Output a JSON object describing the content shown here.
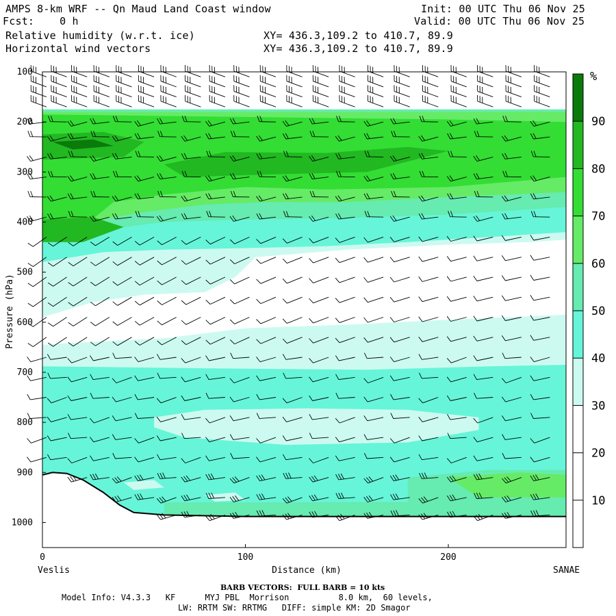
{
  "header": {
    "title": "AMPS 8-km WRF -- Qn Maud Land Coast window",
    "fcst": "Fcst:    0 h",
    "init": "Init: 00 UTC Thu 06 Nov 25",
    "valid": "Valid: 00 UTC Thu 06 Nov 25",
    "field1": "Relative humidity (w.r.t. ice)",
    "field2": "Horizontal wind vectors",
    "xy1": "XY= 436.3,109.2 to 410.7, 89.9",
    "xy2": "XY= 436.3,109.2 to 410.7, 89.9"
  },
  "footer": {
    "barb_note": "BARB VECTORS:  FULL BARB = 10 kts",
    "model_line1": "Model Info: V4.3.3   KF      MYJ PBL  Morrison          8.0 km,  60 levels,",
    "model_line2": "LW: RRTM SW: RRTMG   DIFF: simple KM: 2D Smagor"
  },
  "chart_data": {
    "type": "heatmap",
    "title": "Relative humidity (w.r.t. ice)",
    "overlay": "Horizontal wind vectors (barbs)",
    "xlabel": "Distance (km)",
    "ylabel": "Pressure (hPa)",
    "xlim": [
      0,
      258
    ],
    "ylim": [
      100,
      1050
    ],
    "y_inverted": true,
    "x_ticks": [
      0,
      100,
      200
    ],
    "y_ticks": [
      100,
      200,
      300,
      400,
      500,
      600,
      700,
      800,
      900,
      1000
    ],
    "x_start_label": "Veslis",
    "x_end_label": "SANAE",
    "colorbar": {
      "unit": "%",
      "levels": [
        10,
        20,
        30,
        40,
        50,
        60,
        70,
        80,
        90
      ],
      "colors": [
        "#ffffff",
        "#ffffff",
        "#ffffff",
        "#ccfaf0",
        "#66f5d8",
        "#66ebb0",
        "#66eb66",
        "#33dd33",
        "#22b822",
        "#0a7a0a"
      ]
    },
    "terrain_surface": [
      {
        "x": 0,
        "p": 905
      },
      {
        "x": 5,
        "p": 900
      },
      {
        "x": 12,
        "p": 902
      },
      {
        "x": 20,
        "p": 915
      },
      {
        "x": 30,
        "p": 940
      },
      {
        "x": 38,
        "p": 965
      },
      {
        "x": 45,
        "p": 980
      },
      {
        "x": 60,
        "p": 985
      },
      {
        "x": 100,
        "p": 988
      },
      {
        "x": 200,
        "p": 988
      },
      {
        "x": 258,
        "p": 988
      }
    ],
    "rh_regions": [
      {
        "rh": 35,
        "outline": [
          [
            0,
            175
          ],
          [
            258,
            175
          ],
          [
            258,
            1000
          ],
          [
            0,
            1000
          ]
        ]
      },
      {
        "rh": 0,
        "outline": [
          [
            0,
            590
          ],
          [
            25,
            560
          ],
          [
            50,
            545
          ],
          [
            80,
            540
          ],
          [
            95,
            510
          ],
          [
            105,
            470
          ],
          [
            150,
            455
          ],
          [
            200,
            445
          ],
          [
            240,
            440
          ],
          [
            258,
            435
          ],
          [
            258,
            585
          ],
          [
            200,
            595
          ],
          [
            150,
            605
          ],
          [
            100,
            612
          ],
          [
            60,
            632
          ],
          [
            20,
            640
          ],
          [
            0,
            645
          ]
        ]
      },
      {
        "rh": 45,
        "outline": [
          [
            0,
            175
          ],
          [
            258,
            175
          ],
          [
            258,
            420
          ],
          [
            220,
            430
          ],
          [
            180,
            440
          ],
          [
            140,
            448
          ],
          [
            100,
            452
          ],
          [
            60,
            455
          ],
          [
            30,
            460
          ],
          [
            0,
            480
          ]
        ]
      },
      {
        "rh": 45,
        "outline": [
          [
            0,
            688
          ],
          [
            80,
            692
          ],
          [
            160,
            695
          ],
          [
            220,
            688
          ],
          [
            258,
            685
          ],
          [
            258,
            990
          ],
          [
            0,
            990
          ]
        ]
      },
      {
        "rh": 35,
        "outline": [
          [
            55,
            790
          ],
          [
            80,
            775
          ],
          [
            130,
            772
          ],
          [
            180,
            775
          ],
          [
            215,
            790
          ],
          [
            215,
            815
          ],
          [
            180,
            840
          ],
          [
            120,
            845
          ],
          [
            70,
            830
          ],
          [
            55,
            810
          ]
        ]
      },
      {
        "rh": 55,
        "outline": [
          [
            0,
            175
          ],
          [
            258,
            175
          ],
          [
            258,
            370
          ],
          [
            200,
            385
          ],
          [
            150,
            392
          ],
          [
            100,
            395
          ],
          [
            60,
            400
          ],
          [
            30,
            415
          ],
          [
            0,
            420
          ]
        ]
      },
      {
        "rh": 65,
        "outline": [
          [
            0,
            180
          ],
          [
            258,
            180
          ],
          [
            258,
            340
          ],
          [
            200,
            350
          ],
          [
            150,
            360
          ],
          [
            110,
            360
          ],
          [
            80,
            365
          ],
          [
            50,
            380
          ],
          [
            30,
            395
          ],
          [
            0,
            410
          ]
        ]
      },
      {
        "rh": 75,
        "outline": [
          [
            0,
            185
          ],
          [
            200,
            195
          ],
          [
            258,
            200
          ],
          [
            258,
            310
          ],
          [
            200,
            330
          ],
          [
            140,
            335
          ],
          [
            100,
            330
          ],
          [
            60,
            345
          ],
          [
            35,
            360
          ],
          [
            20,
            410
          ],
          [
            0,
            420
          ]
        ]
      },
      {
        "rh": 85,
        "outline": [
          [
            0,
            225
          ],
          [
            30,
            220
          ],
          [
            50,
            240
          ],
          [
            40,
            270
          ],
          [
            0,
            275
          ]
        ]
      },
      {
        "rh": 85,
        "outline": [
          [
            60,
            285
          ],
          [
            90,
            260
          ],
          [
            140,
            262
          ],
          [
            180,
            250
          ],
          [
            200,
            258
          ],
          [
            160,
            300
          ],
          [
            110,
            305
          ],
          [
            70,
            310
          ]
        ]
      },
      {
        "rh": 85,
        "outline": [
          [
            0,
            395
          ],
          [
            25,
            390
          ],
          [
            40,
            410
          ],
          [
            20,
            440
          ],
          [
            0,
            440
          ]
        ]
      },
      {
        "rh": 95,
        "outline": [
          [
            5,
            240
          ],
          [
            25,
            235
          ],
          [
            35,
            248
          ],
          [
            15,
            255
          ]
        ]
      },
      {
        "rh": 55,
        "outline": [
          [
            180,
            910
          ],
          [
            220,
            895
          ],
          [
            258,
            895
          ],
          [
            258,
            985
          ],
          [
            180,
            985
          ]
        ]
      },
      {
        "rh": 65,
        "outline": [
          [
            200,
            910
          ],
          [
            235,
            900
          ],
          [
            258,
            905
          ],
          [
            258,
            950
          ],
          [
            215,
            950
          ]
        ]
      },
      {
        "rh": 55,
        "outline": [
          [
            60,
            960
          ],
          [
            258,
            958
          ],
          [
            258,
            990
          ],
          [
            60,
            990
          ]
        ]
      },
      {
        "rh": 35,
        "outline": [
          [
            40,
            920
          ],
          [
            55,
            915
          ],
          [
            60,
            930
          ],
          [
            45,
            935
          ]
        ]
      },
      {
        "rh": 35,
        "outline": [
          [
            80,
            945
          ],
          [
            95,
            940
          ],
          [
            100,
            955
          ],
          [
            85,
            958
          ]
        ]
      }
    ],
    "barb_columns_x_km": [
      2,
      12,
      22,
      33,
      44,
      55,
      66,
      78,
      90,
      102,
      115,
      128,
      141,
      154,
      168,
      181,
      195,
      209,
      222,
      236,
      250
    ],
    "barb_levels_hpa": [
      110,
      130,
      150,
      170,
      200,
      230,
      270,
      310,
      350,
      390,
      430,
      470,
      510,
      550,
      590,
      630,
      670,
      710,
      750,
      790,
      830,
      870,
      910,
      950,
      985
    ]
  }
}
